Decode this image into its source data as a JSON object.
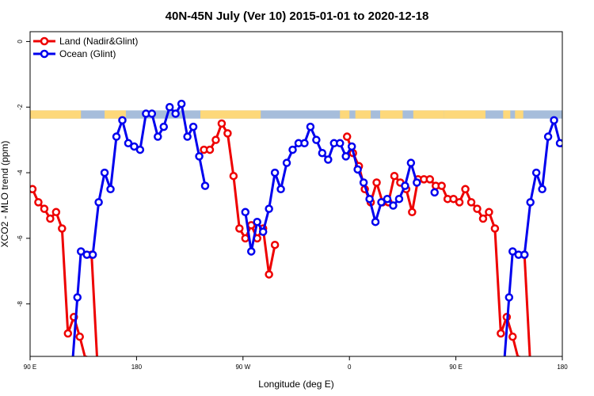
{
  "chart_data": {
    "type": "line",
    "title": "40N-45N July (Ver 10)   2015-01-01 to 2020-12-18",
    "xlabel": "Longitude (deg E)",
    "ylabel": "XCO2 - MLO trend (ppm)",
    "xlim": [
      90,
      540
    ],
    "ylim": [
      -9.6,
      0.3
    ],
    "x_ticks": [
      {
        "value": 90,
        "label": "90 E"
      },
      {
        "value": 180,
        "label": "180"
      },
      {
        "value": 270,
        "label": "90 W"
      },
      {
        "value": 360,
        "label": "0"
      },
      {
        "value": 450,
        "label": "90 E"
      },
      {
        "value": 540,
        "label": "180"
      }
    ],
    "y_ticks": [
      {
        "value": 0,
        "label": "0"
      },
      {
        "value": -2,
        "label": "-2"
      },
      {
        "value": -4,
        "label": "-4"
      },
      {
        "value": -6,
        "label": "-6"
      },
      {
        "value": -8,
        "label": "-8"
      }
    ],
    "legend_position": "top-left",
    "grid": false,
    "land_band": {
      "y_range": [
        -2.35,
        -2.1
      ],
      "ocean_color": "#a6bddb",
      "land_color": "#fdd87a",
      "land_segments": [
        [
          90,
          133
        ],
        [
          153,
          171
        ],
        [
          234,
          285
        ],
        [
          352,
          360
        ],
        [
          365,
          378
        ],
        [
          386,
          405
        ],
        [
          414,
          440
        ],
        [
          440,
          475
        ],
        [
          490,
          496
        ],
        [
          500,
          507
        ]
      ]
    },
    "series": [
      {
        "name": "Land (Nadir&Glint)",
        "color": "#ee0000",
        "segments": [
          [
            [
              92,
              -4.5
            ],
            [
              97,
              -4.9
            ],
            [
              102,
              -5.1
            ],
            [
              107,
              -5.4
            ],
            [
              112,
              -5.2
            ],
            [
              117,
              -5.7
            ],
            [
              122,
              -8.9
            ],
            [
              127,
              -8.4
            ],
            [
              132,
              -9.0
            ],
            [
              137,
              -9.7
            ]
          ],
          [
            [
              142,
              -6.5
            ],
            [
              147,
              -9.9
            ]
          ],
          [
            [
              237,
              -3.3
            ],
            [
              242,
              -3.3
            ],
            [
              247,
              -3.0
            ],
            [
              252,
              -2.5
            ],
            [
              257,
              -2.8
            ],
            [
              262,
              -4.1
            ],
            [
              267,
              -5.7
            ],
            [
              272,
              -6.0
            ],
            [
              277,
              -5.6
            ],
            [
              282,
              -6.0
            ],
            [
              287,
              -5.7
            ],
            [
              292,
              -7.1
            ],
            [
              297,
              -6.2
            ]
          ],
          [
            [
              358,
              -2.9
            ],
            [
              363,
              -3.4
            ],
            [
              368,
              -3.8
            ],
            [
              373,
              -4.5
            ],
            [
              378,
              -4.9
            ],
            [
              383,
              -4.3
            ],
            [
              388,
              -4.9
            ],
            [
              393,
              -4.9
            ],
            [
              398,
              -4.1
            ],
            [
              403,
              -4.3
            ],
            [
              408,
              -4.5
            ],
            [
              413,
              -5.2
            ],
            [
              418,
              -4.2
            ],
            [
              423,
              -4.2
            ],
            [
              428,
              -4.2
            ],
            [
              433,
              -4.4
            ],
            [
              438,
              -4.4
            ],
            [
              443,
              -4.8
            ],
            [
              448,
              -4.8
            ],
            [
              453,
              -4.9
            ],
            [
              458,
              -4.5
            ],
            [
              463,
              -4.9
            ],
            [
              468,
              -5.1
            ],
            [
              473,
              -5.4
            ],
            [
              478,
              -5.2
            ],
            [
              483,
              -5.7
            ],
            [
              488,
              -8.9
            ],
            [
              493,
              -8.4
            ],
            [
              498,
              -9.0
            ],
            [
              503,
              -9.7
            ]
          ],
          [
            [
              508,
              -6.5
            ],
            [
              513,
              -9.9
            ]
          ]
        ]
      },
      {
        "name": "Ocean (Glint)",
        "color": "#0000ee",
        "segments": [
          [
            [
              125,
              -10.2
            ],
            [
              130,
              -7.8
            ],
            [
              133,
              -6.4
            ],
            [
              138,
              -6.5
            ],
            [
              143,
              -6.5
            ],
            [
              148,
              -4.9
            ],
            [
              153,
              -4.0
            ],
            [
              158,
              -4.5
            ],
            [
              163,
              -2.9
            ],
            [
              168,
              -2.4
            ],
            [
              173,
              -3.1
            ],
            [
              178,
              -3.2
            ],
            [
              183,
              -3.3
            ],
            [
              188,
              -2.2
            ],
            [
              193,
              -2.2
            ],
            [
              198,
              -2.9
            ],
            [
              203,
              -2.6
            ],
            [
              208,
              -2.0
            ],
            [
              213,
              -2.2
            ],
            [
              218,
              -1.9
            ],
            [
              223,
              -2.9
            ],
            [
              228,
              -2.6
            ],
            [
              233,
              -3.5
            ],
            [
              238,
              -4.4
            ]
          ],
          [
            [
              272,
              -5.2
            ],
            [
              277,
              -6.4
            ],
            [
              282,
              -5.5
            ],
            [
              287,
              -5.8
            ],
            [
              292,
              -5.1
            ],
            [
              297,
              -4.0
            ],
            [
              302,
              -4.5
            ],
            [
              307,
              -3.7
            ],
            [
              312,
              -3.3
            ],
            [
              317,
              -3.1
            ],
            [
              322,
              -3.1
            ],
            [
              327,
              -2.6
            ],
            [
              332,
              -3.0
            ],
            [
              337,
              -3.4
            ],
            [
              342,
              -3.6
            ],
            [
              347,
              -3.1
            ],
            [
              352,
              -3.1
            ],
            [
              357,
              -3.5
            ],
            [
              362,
              -3.2
            ],
            [
              367,
              -3.9
            ],
            [
              372,
              -4.3
            ],
            [
              377,
              -4.8
            ],
            [
              382,
              -5.5
            ],
            [
              387,
              -4.9
            ],
            [
              392,
              -4.8
            ],
            [
              397,
              -5.0
            ],
            [
              402,
              -4.8
            ],
            [
              407,
              -4.4
            ],
            [
              412,
              -3.7
            ],
            [
              417,
              -4.3
            ]
          ],
          [
            [
              432,
              -4.6
            ]
          ],
          [
            [
              490,
              -10.2
            ],
            [
              495,
              -7.8
            ],
            [
              498,
              -6.4
            ],
            [
              503,
              -6.5
            ],
            [
              508,
              -6.5
            ],
            [
              513,
              -4.9
            ],
            [
              518,
              -4.0
            ],
            [
              523,
              -4.5
            ],
            [
              528,
              -2.9
            ],
            [
              533,
              -2.4
            ],
            [
              538,
              -3.1
            ],
            [
              543,
              -3.2
            ]
          ]
        ]
      }
    ]
  }
}
